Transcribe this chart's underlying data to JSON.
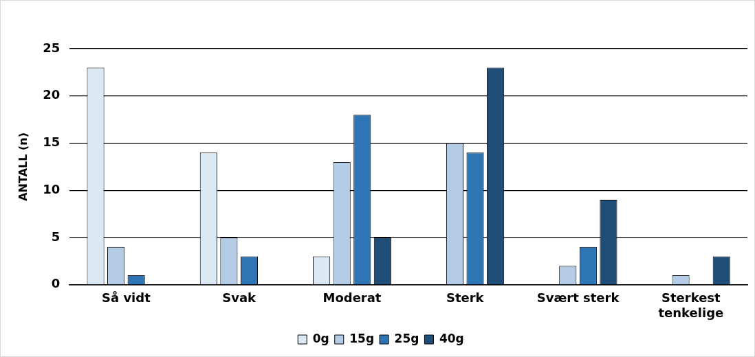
{
  "chart_data": {
    "type": "bar",
    "ylabel": "ANTALL (n)",
    "categories": [
      "Så vidt",
      "Svak",
      "Moderat",
      "Sterk",
      "Svært sterk",
      "Sterkest tenkelige"
    ],
    "series": [
      {
        "name": "0g",
        "color": "#dde8f5",
        "values": [
          23,
          14,
          3,
          0,
          0,
          0
        ]
      },
      {
        "name": "15g",
        "color": "#b4cce6",
        "values": [
          4,
          5,
          13,
          15,
          2,
          1
        ]
      },
      {
        "name": "25g",
        "color": "#2e75b6",
        "values": [
          1,
          3,
          18,
          14,
          4,
          0
        ]
      },
      {
        "name": "40g",
        "color": "#1f4e79",
        "values": [
          0,
          0,
          5,
          23,
          9,
          3
        ]
      }
    ],
    "ylim": [
      0,
      25
    ],
    "yticks": [
      0,
      5,
      10,
      15,
      20,
      25
    ],
    "grid": "y",
    "legend": "bottom"
  }
}
